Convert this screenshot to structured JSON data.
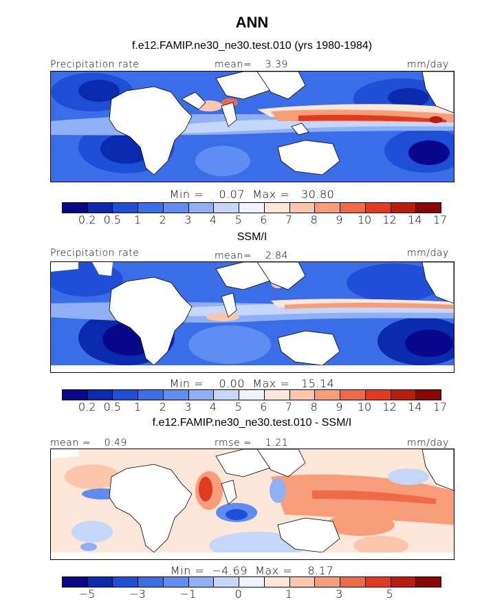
{
  "title": "ANN",
  "colors": {
    "prec": [
      "#08088a",
      "#0a2ab0",
      "#1e4fd6",
      "#3a6ee8",
      "#5f8cf0",
      "#8fb0f5",
      "#c4d6fa",
      "#eef3fe",
      "#fde7d8",
      "#fcc6aa",
      "#f89d7a",
      "#ef6b48",
      "#e03b1f",
      "#b81e0e",
      "#8a0505"
    ],
    "diff": [
      "#08088a",
      "#0a2ab0",
      "#1e4fd6",
      "#3a6ee8",
      "#5f8cf0",
      "#8fb0f5",
      "#c4d6fa",
      "#eef3fe",
      "#fde7d8",
      "#fcc6aa",
      "#f89d7a",
      "#ef6b48",
      "#e03b1f",
      "#b81e0e",
      "#8a0505"
    ]
  },
  "panels": [
    {
      "subtitle": "f.e12.FAMIP.ne30_ne30.test.010 (yrs 1980-1984)",
      "left_label": "Precipitation rate",
      "mid_label": "mean=    3.39",
      "right_label": "mm/day",
      "minmax": "Min =    0.07  Max =   30.80",
      "colorbar": "prec",
      "ticks": [
        "0.2",
        "0.5",
        "1",
        "2",
        "3",
        "4",
        "5",
        "6",
        "7",
        "8",
        "9",
        "10",
        "12",
        "14",
        "17"
      ]
    },
    {
      "subtitle": "SSM/I",
      "left_label": "Precipitation rate",
      "mid_label": "mean=    2.84",
      "right_label": "mm/day",
      "minmax": "Min =    0.00  Max =   15.14",
      "colorbar": "prec",
      "ticks": [
        "0.2",
        "0.5",
        "1",
        "2",
        "3",
        "4",
        "5",
        "6",
        "7",
        "8",
        "9",
        "10",
        "12",
        "14",
        "17"
      ]
    },
    {
      "subtitle": "f.e12.FAMIP.ne30_ne30.test.010 - SSM/I",
      "left_label": "mean =    0.49",
      "mid_label": "rmse =    1.21",
      "right_label": "mm/day",
      "minmax": "Min =  −4.69  Max =    8.17",
      "colorbar": "diff",
      "ticks": [
        "−5",
        "−3",
        "−1",
        "0",
        "1",
        "3",
        "5"
      ]
    }
  ]
}
